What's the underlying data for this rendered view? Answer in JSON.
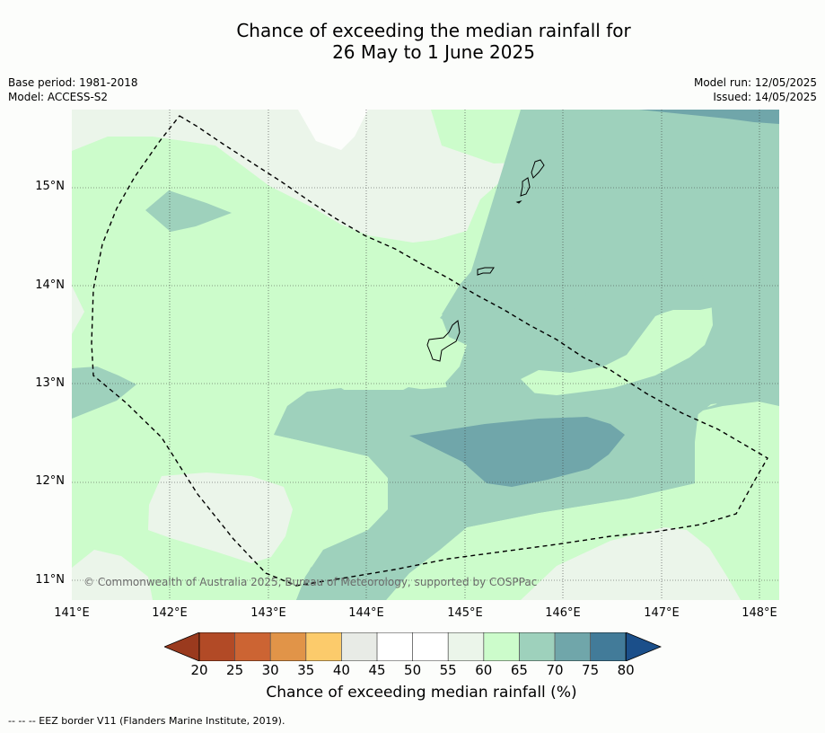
{
  "title": {
    "line1": "Chance of exceeding the median rainfall for",
    "line2": "26 May to 1 June 2025"
  },
  "meta": {
    "base_period": "Base period: 1981-2018",
    "model": "Model: ACCESS-S2",
    "model_run": "Model run: 12/05/2025",
    "issued": "Issued: 14/05/2025"
  },
  "map": {
    "lat_labels": [
      "15°N",
      "14°N",
      "13°N",
      "12°N",
      "11°N"
    ],
    "lon_labels": [
      "141°E",
      "142°E",
      "143°E",
      "144°E",
      "145°E",
      "146°E",
      "147°E",
      "148°E"
    ],
    "copyright": "© Commonwealth of Australia 2025, Bureau of Meteorology, supported by COSPPac"
  },
  "colorbar": {
    "title": "Chance of exceeding median rainfall (%)",
    "ticks": [
      "20",
      "25",
      "30",
      "35",
      "40",
      "45",
      "50",
      "55",
      "60",
      "65",
      "70",
      "75",
      "80"
    ],
    "colors": {
      "lt20": "#9a3a1e",
      "c20": "#b24a26",
      "c25": "#cc6433",
      "c30": "#e19448",
      "c35": "#fccb6b",
      "c40": "#e8ebe6",
      "c45": "#ffffff",
      "c50": "#ffffff",
      "c55": "#ebf5ea",
      "c60": "#ccfccb",
      "c65": "#9ed1bc",
      "c70": "#70a6aa",
      "c75": "#427b99",
      "gt80": "#1b4f8a"
    }
  },
  "footer": {
    "legend": "--  --  -- EEZ border V11 (Flanders Marine Institute, 2019)."
  }
}
